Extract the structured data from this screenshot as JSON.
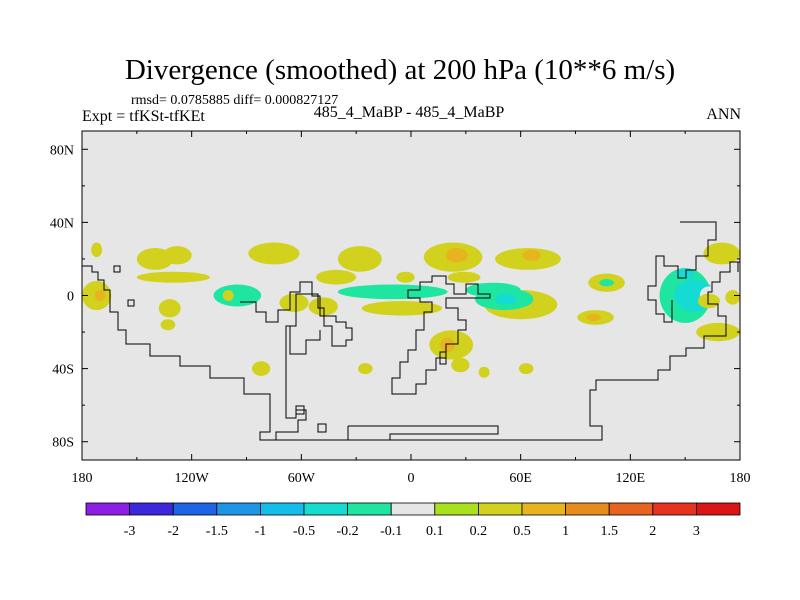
{
  "header": {
    "title": "Divergence (smoothed) at 200 hPa (10**6 m/s)",
    "stats": "rmsd= 0.0785885 diff= 0.000827127",
    "expt": "Expt = tfKSt-tfKEt",
    "case": "485_4_MaBP - 485_4_MaBP",
    "season": "ANN"
  },
  "chart_data": {
    "type": "heatmap",
    "title": "Divergence (smoothed) at 200 hPa (10**6 m/s)",
    "xlabel": "",
    "ylabel": "",
    "xlim": [
      -180,
      180
    ],
    "ylim": [
      -90,
      90
    ],
    "x_ticks": [
      {
        "value": -180,
        "label": "180"
      },
      {
        "value": -120,
        "label": "120W"
      },
      {
        "value": -60,
        "label": "60W"
      },
      {
        "value": 0,
        "label": "0"
      },
      {
        "value": 60,
        "label": "60E"
      },
      {
        "value": 120,
        "label": "120E"
      },
      {
        "value": 180,
        "label": "180"
      }
    ],
    "y_ticks": [
      {
        "value": 80,
        "label": "80N"
      },
      {
        "value": 40,
        "label": "40N"
      },
      {
        "value": 0,
        "label": "0"
      },
      {
        "value": -40,
        "label": "40S"
      },
      {
        "value": -80,
        "label": "80S"
      }
    ],
    "background_color": "#e6e6e6",
    "colorbar": {
      "labels": [
        "-3",
        "-2",
        "-1.5",
        "-1",
        "-0.5",
        "-0.2",
        "-0.1",
        "0.1",
        "0.2",
        "0.5",
        "1",
        "1.5",
        "2",
        "3"
      ],
      "colors": [
        "#8c1ee6",
        "#3c28dc",
        "#1e64e6",
        "#1e96e6",
        "#14beeb",
        "#14dcd2",
        "#1ee6a0",
        "#e6e6e6",
        "#aae11e",
        "#d2d21e",
        "#e6b41e",
        "#e68c1e",
        "#e6641e",
        "#e6321e",
        "#dc1414"
      ]
    },
    "regions": [
      {
        "lon": -140,
        "lat": 20,
        "rx": 10,
        "ry": 6,
        "level": "0.2"
      },
      {
        "lon": -128,
        "lat": 22,
        "rx": 8,
        "ry": 5,
        "level": "0.2"
      },
      {
        "lon": -172,
        "lat": 25,
        "rx": 3,
        "ry": 4,
        "level": "0.2"
      },
      {
        "lon": -75,
        "lat": 23,
        "rx": 14,
        "ry": 6,
        "level": "0.2"
      },
      {
        "lon": -28,
        "lat": 20,
        "rx": 12,
        "ry": 7,
        "level": "0.2"
      },
      {
        "lon": 23,
        "lat": 21,
        "rx": 16,
        "ry": 8,
        "level": "0.2"
      },
      {
        "lon": 25,
        "lat": 22,
        "rx": 6,
        "ry": 4,
        "level": "0.5"
      },
      {
        "lon": 64,
        "lat": 20,
        "rx": 18,
        "ry": 6,
        "level": "0.2"
      },
      {
        "lon": 66,
        "lat": 22,
        "rx": 5,
        "ry": 3,
        "level": "0.5"
      },
      {
        "lon": 170,
        "lat": 23,
        "rx": 10,
        "ry": 6,
        "level": "0.2"
      },
      {
        "lon": -130,
        "lat": 10,
        "rx": 20,
        "ry": 3,
        "level": "0.2"
      },
      {
        "lon": -41,
        "lat": 10,
        "rx": 11,
        "ry": 4,
        "level": "0.2"
      },
      {
        "lon": -3,
        "lat": 10,
        "rx": 5,
        "ry": 3,
        "level": "0.2"
      },
      {
        "lon": 29,
        "lat": 10,
        "rx": 9,
        "ry": 3,
        "level": "0.2"
      },
      {
        "lon": 107,
        "lat": 7,
        "rx": 10,
        "ry": 5,
        "level": "0.2"
      },
      {
        "lon": 107,
        "lat": 7,
        "rx": 4,
        "ry": 2,
        "level": "-0.1"
      },
      {
        "lon": -95,
        "lat": 0,
        "rx": 13,
        "ry": 6,
        "level": "-0.1"
      },
      {
        "lon": -10,
        "lat": 2,
        "rx": 30,
        "ry": 4,
        "level": "-0.1"
      },
      {
        "lon": 45,
        "lat": 3,
        "rx": 15,
        "ry": 4,
        "level": "-0.1"
      },
      {
        "lon": -172,
        "lat": 0,
        "rx": 8,
        "ry": 8,
        "level": "0.2"
      },
      {
        "lon": -170,
        "lat": 0,
        "rx": 3,
        "ry": 3,
        "level": "0.5"
      },
      {
        "lon": -132,
        "lat": -7,
        "rx": 6,
        "ry": 5,
        "level": "0.2"
      },
      {
        "lon": -133,
        "lat": -16,
        "rx": 4,
        "ry": 3,
        "level": "0.2"
      },
      {
        "lon": -100,
        "lat": 0,
        "rx": 3,
        "ry": 3,
        "level": "0.2"
      },
      {
        "lon": -64,
        "lat": -4,
        "rx": 8,
        "ry": 5,
        "level": "0.2"
      },
      {
        "lon": -48,
        "lat": -6,
        "rx": 8,
        "ry": 5,
        "level": "0.2"
      },
      {
        "lon": -5,
        "lat": -7,
        "rx": 22,
        "ry": 4,
        "level": "0.2"
      },
      {
        "lon": 60,
        "lat": -5,
        "rx": 20,
        "ry": 8,
        "level": "0.2"
      },
      {
        "lon": 51,
        "lat": -2,
        "rx": 16,
        "ry": 6,
        "level": "-0.1"
      },
      {
        "lon": 52,
        "lat": -2,
        "rx": 6,
        "ry": 3,
        "level": "-0.2"
      },
      {
        "lon": 101,
        "lat": -12,
        "rx": 10,
        "ry": 4,
        "level": "0.2"
      },
      {
        "lon": 100,
        "lat": -12,
        "rx": 4,
        "ry": 2,
        "level": "0.5"
      },
      {
        "lon": 168,
        "lat": -20,
        "rx": 12,
        "ry": 5,
        "level": "0.2"
      },
      {
        "lon": 22,
        "lat": -27,
        "rx": 12,
        "ry": 8,
        "level": "0.2"
      },
      {
        "lon": 20,
        "lat": -27,
        "rx": 4,
        "ry": 4,
        "level": "0.5"
      },
      {
        "lon": 27,
        "lat": -38,
        "rx": 5,
        "ry": 4,
        "level": "0.2"
      },
      {
        "lon": -25,
        "lat": -40,
        "rx": 4,
        "ry": 3,
        "level": "0.2"
      },
      {
        "lon": -82,
        "lat": -40,
        "rx": 5,
        "ry": 4,
        "level": "0.2"
      },
      {
        "lon": 40,
        "lat": -42,
        "rx": 3,
        "ry": 3,
        "level": "0.2"
      },
      {
        "lon": 63,
        "lat": -40,
        "rx": 4,
        "ry": 3,
        "level": "0.2"
      },
      {
        "lon": 150,
        "lat": 0,
        "rx": 14,
        "ry": 15,
        "level": "-0.1"
      },
      {
        "lon": 155,
        "lat": 0,
        "rx": 11,
        "ry": 9,
        "level": "-0.2"
      },
      {
        "lon": 163,
        "lat": 0,
        "rx": 5,
        "ry": 5,
        "level": "0.1"
      },
      {
        "lon": 163,
        "lat": -3,
        "rx": 6,
        "ry": 4,
        "level": "0.2"
      },
      {
        "lon": 176,
        "lat": -1,
        "rx": 4,
        "ry": 4,
        "level": "0.2"
      },
      {
        "lon": 150,
        "lat": 12,
        "rx": 5,
        "ry": 3,
        "level": "-0.2"
      }
    ]
  }
}
